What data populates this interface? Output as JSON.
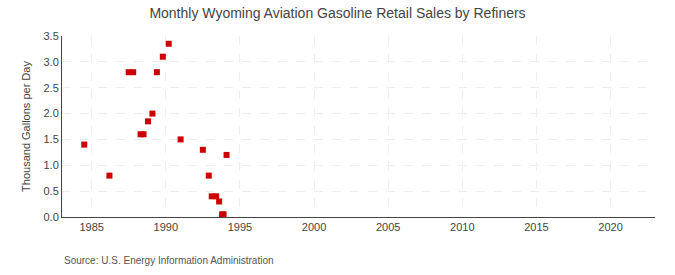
{
  "chart_data": {
    "type": "scatter",
    "title": "Monthly Wyoming Aviation Gasoline Retail Sales by Refiners",
    "ylabel": "Thousand Gallons per Day",
    "annotations": [
      "Source: U.S. Energy Information Administration"
    ],
    "x": [
      1984.5,
      1986.2,
      1987.5,
      1987.8,
      1988.3,
      1988.5,
      1988.8,
      1989.1,
      1989.4,
      1989.8,
      1990.2,
      1991.0,
      1992.5,
      1992.9,
      1993.1,
      1993.4,
      1993.6,
      1993.8,
      1993.9,
      1994.1
    ],
    "values": [
      1.4,
      0.8,
      2.8,
      2.8,
      1.6,
      1.6,
      1.85,
      2.0,
      2.8,
      3.1,
      3.35,
      1.5,
      1.3,
      0.8,
      0.4,
      0.4,
      0.3,
      0.05,
      0.05,
      1.2
    ],
    "color": "#cc0000",
    "marker": "square",
    "xlim": [
      1983,
      2023
    ],
    "ylim": [
      0.0,
      3.5
    ],
    "xticks": [
      1985,
      1990,
      1995,
      2000,
      2005,
      2010,
      2015,
      2020
    ],
    "yticks": [
      {
        "value": 0.0,
        "label": "0.0"
      },
      0.5,
      {
        "value": 1.0,
        "label": "1.0"
      },
      1.5,
      {
        "value": 2.0,
        "label": "2.0"
      },
      2.5,
      {
        "value": 3.0,
        "label": "3.0"
      },
      3.5
    ],
    "grid": true
  }
}
